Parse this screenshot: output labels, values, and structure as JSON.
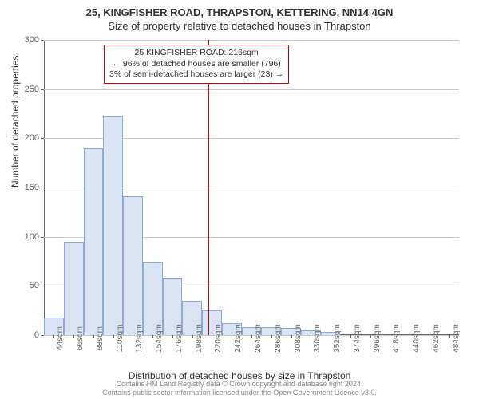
{
  "title_main": "25, KINGFISHER ROAD, THRAPSTON, KETTERING, NN14 4GN",
  "title_sub": "Size of property relative to detached houses in Thrapston",
  "ylabel": "Number of detached properties",
  "xlabel": "Distribution of detached houses by size in Thrapston",
  "footer_line1": "Contains HM Land Registry data © Crown copyright and database right 2024.",
  "footer_line2": "Contains public sector information licensed under the Open Government Licence v3.0.",
  "chart": {
    "type": "histogram",
    "ylim": [
      0,
      300
    ],
    "ytick_step": 50,
    "yticks": [
      0,
      50,
      100,
      150,
      200,
      250,
      300
    ],
    "xticks": [
      "44sqm",
      "66sqm",
      "88sqm",
      "110sqm",
      "132sqm",
      "154sqm",
      "176sqm",
      "198sqm",
      "220sqm",
      "242sqm",
      "264sqm",
      "286sqm",
      "308sqm",
      "330sqm",
      "352sqm",
      "374sqm",
      "396sqm",
      "418sqm",
      "440sqm",
      "462sqm",
      "484sqm"
    ],
    "values": [
      18,
      95,
      190,
      223,
      141,
      75,
      58,
      35,
      25,
      12,
      8,
      8,
      7,
      5,
      3,
      0,
      0,
      0,
      0,
      0,
      0
    ],
    "bar_color": "#d9e4f4",
    "bar_border_color": "#8faad4",
    "bar_width_ratio": 1.0,
    "background_color": "#ffffff",
    "grid_color": "#cccccc",
    "axis_color": "#666666",
    "tick_label_fontsize": 11,
    "axis_label_fontsize": 12
  },
  "marker": {
    "position_sqm": 216,
    "line_color": "#cc0000"
  },
  "annotation": {
    "border_color": "#cc0000",
    "lines": [
      "25 KINGFISHER ROAD: 216sqm",
      "← 96% of detached houses are smaller (796)",
      "3% of semi-detached houses are larger (23) →"
    ]
  }
}
